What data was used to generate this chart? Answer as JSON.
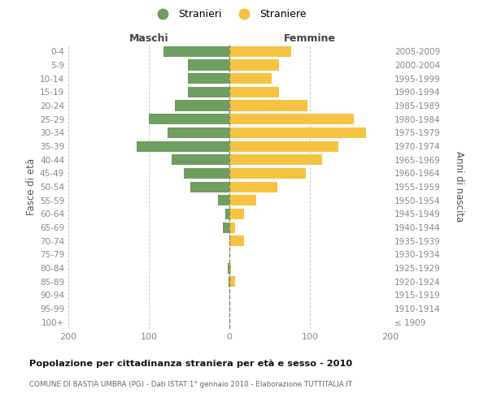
{
  "age_groups": [
    "100+",
    "95-99",
    "90-94",
    "85-89",
    "80-84",
    "75-79",
    "70-74",
    "65-69",
    "60-64",
    "55-59",
    "50-54",
    "45-49",
    "40-44",
    "35-39",
    "30-34",
    "25-29",
    "20-24",
    "15-19",
    "10-14",
    "5-9",
    "0-4"
  ],
  "birth_years": [
    "≤ 1909",
    "1910-1914",
    "1915-1919",
    "1920-1924",
    "1925-1929",
    "1930-1934",
    "1935-1939",
    "1940-1944",
    "1945-1949",
    "1950-1954",
    "1955-1959",
    "1960-1964",
    "1965-1969",
    "1970-1974",
    "1975-1979",
    "1980-1984",
    "1985-1989",
    "1990-1994",
    "1995-1999",
    "2000-2004",
    "2005-2009"
  ],
  "maschi": [
    0,
    0,
    0,
    1,
    2,
    0,
    0,
    8,
    5,
    14,
    48,
    57,
    72,
    115,
    77,
    100,
    68,
    52,
    52,
    52,
    82
  ],
  "femmine": [
    0,
    0,
    0,
    7,
    2,
    0,
    18,
    7,
    18,
    33,
    60,
    95,
    115,
    135,
    170,
    155,
    97,
    62,
    53,
    62,
    77
  ],
  "male_color": "#6e9e60",
  "female_color": "#f5c242",
  "title": "Popolazione per cittadinanza straniera per età e sesso - 2010",
  "subtitle": "COMUNE DI BASTIA UMBRA (PG) - Dati ISTAT 1° gennaio 2010 - Elaborazione TUTTITALIA.IT",
  "label_maschi": "Maschi",
  "label_femmine": "Femmine",
  "ylabel_left": "Fasce di età",
  "ylabel_right": "Anni di nascita",
  "legend_maschi": "Stranieri",
  "legend_femmine": "Straniere",
  "xlim": 200,
  "bg_color": "#ffffff",
  "grid_color": "#cccccc",
  "bar_height": 0.78,
  "center_line_color": "#888866",
  "tick_label_color": "#888888",
  "axis_label_color": "#555555",
  "title_color": "#111111",
  "subtitle_color": "#666666"
}
